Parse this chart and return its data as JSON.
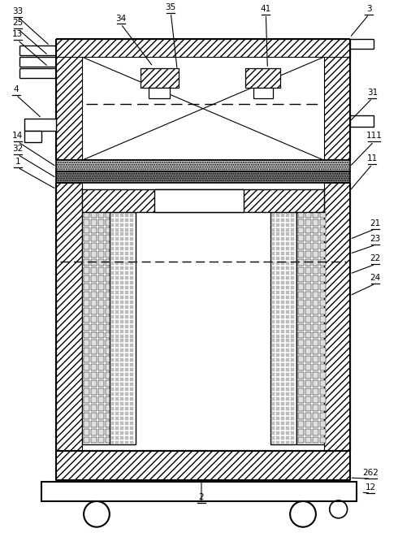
{
  "fig_width": 4.9,
  "fig_height": 6.61,
  "dpi": 100,
  "bg_color": "#ffffff",
  "lc": "#000000",
  "labels": [
    [
      "33",
      20,
      645,
      60,
      608
    ],
    [
      "25",
      20,
      630,
      58,
      596
    ],
    [
      "13",
      20,
      616,
      58,
      582
    ],
    [
      "4",
      18,
      548,
      50,
      518
    ],
    [
      "14",
      20,
      490,
      68,
      458
    ],
    [
      "32",
      20,
      474,
      68,
      444
    ],
    [
      "1",
      20,
      458,
      68,
      430
    ],
    [
      "35",
      210,
      650,
      218,
      578
    ],
    [
      "34",
      148,
      636,
      188,
      582
    ],
    [
      "41",
      328,
      648,
      330,
      580
    ],
    [
      "3",
      456,
      648,
      432,
      618
    ],
    [
      "31",
      460,
      544,
      432,
      514
    ],
    [
      "111",
      462,
      490,
      432,
      458
    ],
    [
      "11",
      460,
      462,
      432,
      428
    ],
    [
      "21",
      464,
      382,
      432,
      368
    ],
    [
      "23",
      464,
      362,
      432,
      350
    ],
    [
      "22",
      464,
      338,
      432,
      325
    ],
    [
      "24",
      464,
      314,
      432,
      298
    ],
    [
      "2",
      248,
      42,
      248,
      72
    ],
    [
      "262",
      458,
      72,
      432,
      72
    ],
    [
      "12",
      458,
      54,
      446,
      54
    ]
  ]
}
